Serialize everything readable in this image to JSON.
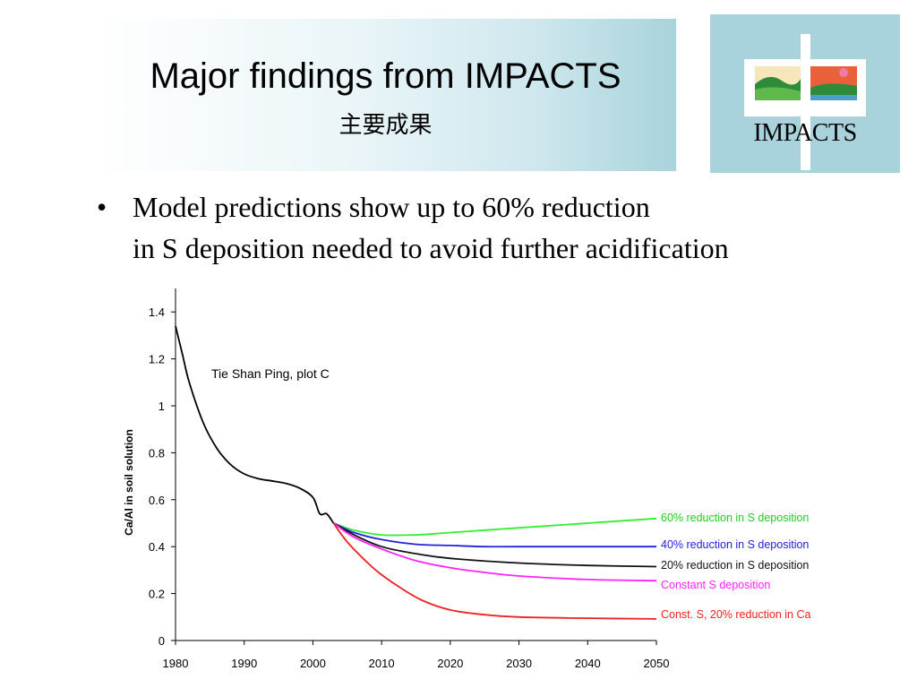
{
  "slide": {
    "title": "Major findings from IMPACTS",
    "subtitle": "主要成果",
    "logo_text": "IMPACTS",
    "bullet_symbol": "•",
    "bullet_line1": "Model predictions show up to 60% reduction",
    "bullet_line2": "in S deposition needed to avoid further acidification"
  },
  "colors": {
    "banner_accent": "#a9d3dc",
    "logo_green": "#2e8b3a",
    "logo_orange": "#e8613a",
    "logo_pink": "#f07aa8"
  },
  "chart_data": {
    "type": "line",
    "title": "",
    "annotation": "Tie Shan Ping, plot C",
    "xlabel": "",
    "ylabel": "Ca/Al in soil solution",
    "xlim": [
      1980,
      2050
    ],
    "ylim": [
      0,
      1.5
    ],
    "x_ticks": [
      1980,
      1990,
      2000,
      2010,
      2020,
      2030,
      2040,
      2050
    ],
    "y_ticks": [
      0,
      0.2,
      0.4,
      0.6,
      0.8,
      1,
      1.2,
      1.4
    ],
    "y_tick_labels": [
      "0",
      "0.2",
      "0.4",
      "0.6",
      "0.8",
      "1",
      "1.2",
      "1.4"
    ],
    "grid": false,
    "historical": {
      "color": "#000000",
      "x": [
        1980,
        1981,
        1982,
        1984,
        1986,
        1988,
        1990,
        1992,
        1994,
        1996,
        1998,
        2000,
        2001,
        2002,
        2003
      ],
      "y": [
        1.34,
        1.22,
        1.1,
        0.93,
        0.82,
        0.75,
        0.71,
        0.69,
        0.68,
        0.67,
        0.65,
        0.61,
        0.54,
        0.54,
        0.5
      ]
    },
    "series": [
      {
        "name": "60% reduction in S deposition",
        "color": "#33ee33",
        "x": [
          2003,
          2006,
          2010,
          2015,
          2020,
          2030,
          2040,
          2050
        ],
        "y": [
          0.5,
          0.47,
          0.45,
          0.45,
          0.46,
          0.48,
          0.5,
          0.52
        ]
      },
      {
        "name": "40% reduction in S deposition",
        "color": "#2222dd",
        "x": [
          2003,
          2006,
          2010,
          2015,
          2020,
          2025,
          2030,
          2040,
          2050
        ],
        "y": [
          0.5,
          0.46,
          0.43,
          0.41,
          0.405,
          0.4,
          0.4,
          0.4,
          0.4
        ]
      },
      {
        "name": "20% reduction in S deposition",
        "color": "#111111",
        "x": [
          2003,
          2006,
          2010,
          2015,
          2020,
          2030,
          2040,
          2050
        ],
        "y": [
          0.5,
          0.45,
          0.4,
          0.37,
          0.35,
          0.33,
          0.32,
          0.315
        ]
      },
      {
        "name": "Constant S deposition",
        "color": "#ff22ff",
        "x": [
          2003,
          2006,
          2010,
          2015,
          2020,
          2025,
          2030,
          2040,
          2050
        ],
        "y": [
          0.5,
          0.44,
          0.39,
          0.34,
          0.31,
          0.29,
          0.275,
          0.26,
          0.255
        ]
      },
      {
        "name": "Const. S, 20% reduction in Ca",
        "color": "#ee2222",
        "x": [
          2003,
          2005,
          2008,
          2010,
          2013,
          2016,
          2020,
          2025,
          2030,
          2040,
          2050
        ],
        "y": [
          0.5,
          0.42,
          0.33,
          0.28,
          0.22,
          0.17,
          0.13,
          0.11,
          0.1,
          0.095,
          0.092
        ]
      }
    ]
  }
}
